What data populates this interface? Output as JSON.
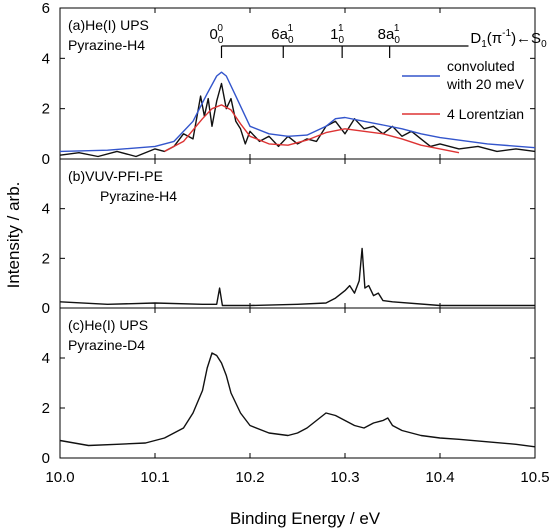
{
  "chart_data": {
    "type": "line",
    "xlabel": "Binding Energy / eV",
    "ylabel": "Intensity / arb.",
    "xlim": [
      10.0,
      10.5
    ],
    "x_ticks": [
      "10.0",
      "10.1",
      "10.2",
      "10.3",
      "10.4",
      "10.5"
    ],
    "grid": false,
    "panels": [
      {
        "id": "a",
        "label_line1": "(a)He(I) UPS",
        "label_line2": "Pyrazine-H4",
        "ylim": [
          0,
          6
        ],
        "y_ticks": [
          "0",
          "2",
          "4",
          "6"
        ],
        "assignment": {
          "prefix": "D",
          "prefix_sub": "1",
          "paren": "(π",
          "paren_sup": "-1",
          "suffix": ")←S",
          "suffix_sub": "0"
        },
        "vibronic_labels": [
          {
            "base": "0",
            "sup": "0",
            "sub": "0",
            "x": 10.17
          },
          {
            "base": "6a",
            "sup": "1",
            "sub": "0",
            "x": 10.235
          },
          {
            "base": "1",
            "sup": "1",
            "sub": "0",
            "x": 10.297
          },
          {
            "base": "8a",
            "sup": "1",
            "sub": "0",
            "x": 10.347
          }
        ],
        "legend_position": "right",
        "legend": [
          {
            "label": "convoluted",
            "label2": "with 20 meV",
            "color": "#3355cc"
          },
          {
            "label": "4 Lorentzian",
            "label2": "",
            "color": "#dd3333"
          }
        ],
        "series": [
          {
            "id": "a-black",
            "color": "#111111",
            "x": [
              10.0,
              10.02,
              10.04,
              10.06,
              10.08,
              10.1,
              10.11,
              10.12,
              10.13,
              10.14,
              10.148,
              10.152,
              10.156,
              10.16,
              10.165,
              10.17,
              10.175,
              10.18,
              10.185,
              10.19,
              10.195,
              10.2,
              10.21,
              10.22,
              10.23,
              10.24,
              10.25,
              10.26,
              10.27,
              10.28,
              10.29,
              10.3,
              10.31,
              10.32,
              10.33,
              10.34,
              10.35,
              10.36,
              10.37,
              10.38,
              10.39,
              10.4,
              10.42,
              10.44,
              10.46,
              10.48,
              10.5
            ],
            "y": [
              0.15,
              0.25,
              0.1,
              0.3,
              0.1,
              0.4,
              0.3,
              0.5,
              1.0,
              0.8,
              2.5,
              1.7,
              2.4,
              1.3,
              2.3,
              3.0,
              2.0,
              2.4,
              1.5,
              1.2,
              0.6,
              1.1,
              0.7,
              0.9,
              0.5,
              0.9,
              0.6,
              0.8,
              0.7,
              1.3,
              1.5,
              1.0,
              1.6,
              1.2,
              1.3,
              1.0,
              1.3,
              0.9,
              1.1,
              0.8,
              0.5,
              0.6,
              0.4,
              0.5,
              0.3,
              0.4,
              0.3
            ]
          },
          {
            "id": "a-blue",
            "color": "#3355cc",
            "x": [
              10.0,
              10.05,
              10.1,
              10.12,
              10.14,
              10.155,
              10.165,
              10.17,
              10.175,
              10.185,
              10.2,
              10.22,
              10.24,
              10.26,
              10.28,
              10.29,
              10.3,
              10.32,
              10.34,
              10.36,
              10.38,
              10.4,
              10.45,
              10.5
            ],
            "y": [
              0.3,
              0.35,
              0.5,
              0.7,
              1.5,
              2.6,
              3.3,
              3.45,
              3.3,
              2.5,
              1.3,
              1.0,
              0.9,
              0.95,
              1.3,
              1.6,
              1.65,
              1.5,
              1.35,
              1.2,
              1.0,
              0.85,
              0.6,
              0.45
            ]
          },
          {
            "id": "a-red",
            "color": "#dd3333",
            "x": [
              10.11,
              10.13,
              10.15,
              10.16,
              10.17,
              10.18,
              10.19,
              10.2,
              10.22,
              10.24,
              10.26,
              10.28,
              10.3,
              10.32,
              10.34,
              10.36,
              10.38,
              10.4,
              10.42
            ],
            "y": [
              0.3,
              0.7,
              1.6,
              2.0,
              2.15,
              1.95,
              1.4,
              0.9,
              0.6,
              0.55,
              0.75,
              1.05,
              1.2,
              1.1,
              1.0,
              0.8,
              0.55,
              0.4,
              0.25
            ]
          }
        ]
      },
      {
        "id": "b",
        "label_line1": "(b)VUV-PFI-PE",
        "label_line2": "Pyrazine-H4",
        "ylim": [
          0,
          6
        ],
        "y_ticks": [
          "0",
          "2",
          "4"
        ],
        "series": [
          {
            "id": "b-black",
            "color": "#111111",
            "x": [
              10.0,
              10.05,
              10.1,
              10.15,
              10.165,
              10.168,
              10.171,
              10.18,
              10.2,
              10.25,
              10.28,
              10.29,
              10.3,
              10.305,
              10.31,
              10.315,
              10.318,
              10.321,
              10.325,
              10.33,
              10.335,
              10.34,
              10.35,
              10.4,
              10.45,
              10.5
            ],
            "y": [
              0.25,
              0.15,
              0.2,
              0.15,
              0.15,
              0.8,
              0.1,
              0.1,
              0.1,
              0.15,
              0.2,
              0.4,
              0.7,
              0.9,
              0.6,
              1.1,
              2.4,
              0.8,
              0.9,
              0.5,
              0.6,
              0.3,
              0.25,
              0.1,
              0.1,
              0.1
            ]
          }
        ]
      },
      {
        "id": "c",
        "label_line1": "(c)He(I) UPS",
        "label_line2": "Pyrazine-D4",
        "ylim": [
          0,
          6
        ],
        "y_ticks": [
          "0",
          "2",
          "4"
        ],
        "series": [
          {
            "id": "c-black",
            "color": "#111111",
            "x": [
              10.0,
              10.03,
              10.06,
              10.09,
              10.11,
              10.13,
              10.14,
              10.15,
              10.155,
              10.16,
              10.165,
              10.17,
              10.175,
              10.18,
              10.19,
              10.2,
              10.22,
              10.24,
              10.25,
              10.26,
              10.27,
              10.28,
              10.29,
              10.3,
              10.31,
              10.32,
              10.33,
              10.34,
              10.345,
              10.35,
              10.36,
              10.38,
              10.4,
              10.42,
              10.45,
              10.48,
              10.5
            ],
            "y": [
              0.7,
              0.5,
              0.55,
              0.6,
              0.8,
              1.2,
              1.8,
              2.7,
              3.6,
              4.2,
              4.1,
              3.8,
              3.3,
              2.6,
              1.8,
              1.3,
              1.0,
              0.9,
              1.0,
              1.2,
              1.5,
              1.8,
              1.7,
              1.5,
              1.3,
              1.2,
              1.4,
              1.5,
              1.6,
              1.3,
              1.1,
              0.9,
              0.8,
              0.75,
              0.65,
              0.55,
              0.45
            ]
          }
        ]
      }
    ]
  }
}
